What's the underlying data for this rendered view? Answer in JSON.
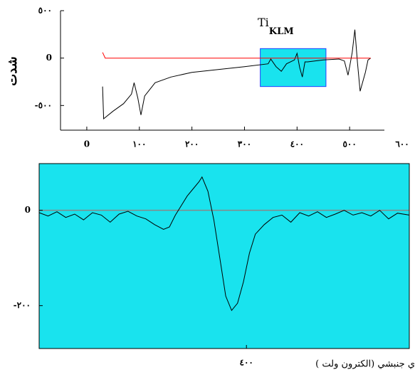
{
  "chart_data": [
    {
      "type": "line",
      "y_label": "شدت",
      "annotation": {
        "text": "Ti",
        "sub": "KLM"
      },
      "xlim": [
        -50,
        600
      ],
      "ylim": [
        -760,
        500
      ],
      "xticks": [
        {
          "value": 0,
          "label": "0"
        },
        {
          "value": 100,
          "label": "١٠٠"
        },
        {
          "value": 200,
          "label": "٢٠٠"
        },
        {
          "value": 300,
          "label": "٣٠٠"
        },
        {
          "value": 400,
          "label": "٤٠٠"
        },
        {
          "value": 500,
          "label": "٥٠٠"
        },
        {
          "value": 600,
          "label": "٦٠٠"
        }
      ],
      "yticks": [
        {
          "value": 500,
          "label": "٥٠٠"
        },
        {
          "value": 0,
          "label": "0"
        },
        {
          "value": -500,
          "label": "-٥٠٠"
        }
      ],
      "highlight": {
        "x": [
          330,
          455
        ],
        "y": [
          -300,
          100
        ],
        "color": "#19e3ee"
      },
      "series": [
        {
          "color": "#000000",
          "x": [
            30,
            32,
            50,
            70,
            85,
            90,
            97,
            103,
            110,
            130,
            160,
            200,
            250,
            300,
            345,
            350,
            360,
            370,
            380,
            395,
            400,
            405,
            410,
            415,
            420,
            450,
            480,
            490,
            497,
            500,
            505,
            510,
            515,
            520,
            530,
            535,
            540
          ],
          "values": [
            -300,
            -640,
            -560,
            -480,
            -380,
            -260,
            -420,
            -600,
            -400,
            -260,
            -200,
            -150,
            -120,
            -90,
            -60,
            -10,
            -90,
            -140,
            -60,
            -20,
            50,
            -100,
            -200,
            -40,
            -40,
            -20,
            -10,
            -30,
            -180,
            -90,
            60,
            300,
            -50,
            -350,
            -150,
            -20,
            0
          ]
        },
        {
          "color": "#ff0000",
          "x": [
            30,
            35,
            540
          ],
          "values": [
            60,
            0,
            0
          ]
        }
      ]
    },
    {
      "type": "line",
      "x_label": "ي جنبشي (الكترون ولت )",
      "xlim": [
        330,
        455
      ],
      "ylim": [
        -290,
        98
      ],
      "xticks": [
        {
          "value": 400,
          "label": "٤٠٠"
        }
      ],
      "yticks": [
        0,
        {
          "value": -200,
          "label": "-٢٠٠"
        }
      ],
      "background": "#19e3ee",
      "zero_line_color": "#888888",
      "series": [
        {
          "color": "#000000",
          "x": [
            330,
            333,
            336,
            339,
            342,
            345,
            348,
            351,
            354,
            357,
            360,
            363,
            366,
            369,
            372,
            374,
            376,
            378,
            380,
            382,
            384,
            385,
            387,
            389,
            391,
            393,
            395,
            397,
            399,
            401,
            403,
            406,
            409,
            412,
            415,
            418,
            421,
            424,
            427,
            430,
            433,
            436,
            439,
            442,
            445,
            448,
            451,
            455
          ],
          "values": [
            -5,
            -12,
            -3,
            -15,
            -8,
            -20,
            -5,
            -10,
            -25,
            -8,
            -2,
            -12,
            -18,
            -30,
            -40,
            -35,
            -10,
            10,
            30,
            45,
            60,
            70,
            40,
            -20,
            -100,
            -180,
            -210,
            -195,
            -150,
            -90,
            -50,
            -30,
            -15,
            -10,
            -25,
            -5,
            -12,
            -3,
            -15,
            -8,
            0,
            -10,
            -5,
            -12,
            0,
            -18,
            -6,
            -10
          ]
        }
      ]
    }
  ]
}
